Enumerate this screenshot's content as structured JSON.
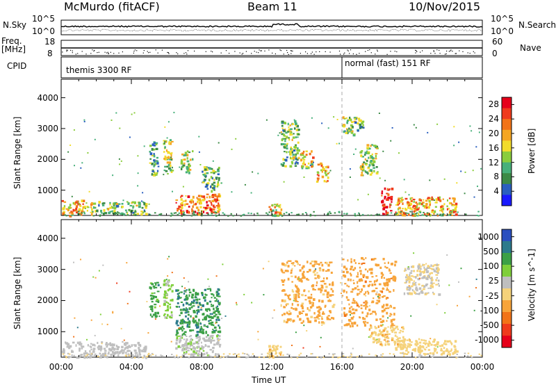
{
  "header": {
    "station": "McMurdo (fitACF)",
    "beam": "Beam 11",
    "date": "10/Nov/2015"
  },
  "strip": {
    "nsky_label": "N.Sky",
    "nsky_top": "10^5",
    "nsky_bottom": "10^0",
    "nsearch_label": "N.Search",
    "nsearch_top": "10^5",
    "nsearch_bottom": "10^0",
    "freq_label": "Freq.",
    "freq_unit": "[MHz]",
    "freq_top": "18",
    "freq_bottom": "8",
    "nave_label": "Nave",
    "nave_top": "60",
    "nave_bottom": "0",
    "cpid_label": "CPID",
    "cpid_mode1": "themis 3300 RF",
    "cpid_mode2": "normal (fast) 151 RF"
  },
  "colors": {
    "power": [
      "#1a1aff",
      "#2a5fbf",
      "#3c8a46",
      "#47b07a",
      "#8acd3c",
      "#f2dc2b",
      "#f5a623",
      "#f27318",
      "#ef3a1c",
      "#e6001a"
    ],
    "velocity": [
      "#e6001a",
      "#ef3a1c",
      "#f27318",
      "#f7a43a",
      "#f5d27a",
      "#bfbfbf",
      "#7fcf3a",
      "#3ca046",
      "#2c7a8c",
      "#2a4fbf"
    ]
  },
  "chart_data": [
    {
      "type": "heatmap",
      "title": "",
      "xlabel": "",
      "ylabel": "Slant Range [km]",
      "x_ticks": [
        "00:00",
        "04:00",
        "08:00",
        "12:00",
        "16:00",
        "20:00",
        "00:00"
      ],
      "xlim_hours": [
        0,
        24
      ],
      "y_ticks": [
        1000,
        2000,
        3000,
        4000
      ],
      "ylim": [
        180,
        4600
      ],
      "colorbar_label": "Power [dB]",
      "colorbar_ticks": [
        "4",
        "8",
        "12",
        "16",
        "20",
        "24",
        "28"
      ],
      "colorbar_range": [
        0,
        30
      ],
      "mode_change_hour": 16,
      "echo_regions": [
        {
          "t": [
            0.0,
            1.8
          ],
          "r": [
            200,
            700
          ],
          "v": 20
        },
        {
          "t": [
            1.8,
            4.8
          ],
          "r": [
            250,
            650
          ],
          "v": 12
        },
        {
          "t": [
            5.0,
            5.5
          ],
          "r": [
            1500,
            2600
          ],
          "v": 10
        },
        {
          "t": [
            5.8,
            6.3
          ],
          "r": [
            1500,
            2700
          ],
          "v": 14
        },
        {
          "t": [
            6.5,
            9.0
          ],
          "r": [
            250,
            900
          ],
          "v": 22
        },
        {
          "t": [
            6.8,
            7.5
          ],
          "r": [
            1600,
            2300
          ],
          "v": 14
        },
        {
          "t": [
            8.0,
            9.0
          ],
          "r": [
            1000,
            1800
          ],
          "v": 10
        },
        {
          "t": [
            11.8,
            12.5
          ],
          "r": [
            200,
            600
          ],
          "v": 18
        },
        {
          "t": [
            12.5,
            13.5
          ],
          "r": [
            1800,
            3300
          ],
          "v": 12
        },
        {
          "t": [
            13.6,
            14.3
          ],
          "r": [
            1700,
            2300
          ],
          "v": 18
        },
        {
          "t": [
            14.5,
            15.2
          ],
          "r": [
            1300,
            1900
          ],
          "v": 20
        },
        {
          "t": [
            16.0,
            17.2
          ],
          "r": [
            2800,
            3400
          ],
          "v": 12
        },
        {
          "t": [
            17.0,
            18.0
          ],
          "r": [
            1500,
            2500
          ],
          "v": 14
        },
        {
          "t": [
            18.2,
            18.8
          ],
          "r": [
            200,
            1100
          ],
          "v": 28
        },
        {
          "t": [
            19.0,
            22.5
          ],
          "r": [
            200,
            800
          ],
          "v": 20
        }
      ]
    },
    {
      "type": "heatmap",
      "title": "",
      "xlabel": "Time UT",
      "ylabel": "Slant Range [km]",
      "x_ticks": [
        "00:00",
        "04:00",
        "08:00",
        "12:00",
        "16:00",
        "20:00",
        "00:00"
      ],
      "xlim_hours": [
        0,
        24
      ],
      "y_ticks": [
        1000,
        2000,
        3000,
        4000
      ],
      "ylim": [
        180,
        4600
      ],
      "colorbar_label": "Velocity [m s^-1]",
      "colorbar_ticks": [
        "1000",
        "500",
        "100",
        "25",
        "-25",
        "-100",
        "-500",
        "-1000"
      ],
      "colorbar_range": [
        -1250,
        1250
      ],
      "mode_change_hour": 16,
      "echo_regions": [
        {
          "t": [
            0.0,
            4.8
          ],
          "r": [
            200,
            700
          ],
          "v": 100
        },
        {
          "t": [
            5.0,
            5.5
          ],
          "r": [
            1500,
            2600
          ],
          "v": 600
        },
        {
          "t": [
            5.8,
            6.3
          ],
          "r": [
            1400,
            2700
          ],
          "v": 300
        },
        {
          "t": [
            6.5,
            9.0
          ],
          "r": [
            900,
            2400
          ],
          "v": 700
        },
        {
          "t": [
            6.5,
            9.0
          ],
          "r": [
            250,
            900
          ],
          "v": 200
        },
        {
          "t": [
            11.8,
            12.5
          ],
          "r": [
            200,
            600
          ],
          "v": -200
        },
        {
          "t": [
            12.5,
            15.5
          ],
          "r": [
            1300,
            3300
          ],
          "v": -300
        },
        {
          "t": [
            16.0,
            19.0
          ],
          "r": [
            1200,
            3400
          ],
          "v": -400
        },
        {
          "t": [
            17.5,
            19.5
          ],
          "r": [
            600,
            1200
          ],
          "v": -200
        },
        {
          "t": [
            19.0,
            22.5
          ],
          "r": [
            300,
            800
          ],
          "v": -150
        },
        {
          "t": [
            19.5,
            21.5
          ],
          "r": [
            2200,
            3200
          ],
          "v": 0
        }
      ]
    }
  ]
}
